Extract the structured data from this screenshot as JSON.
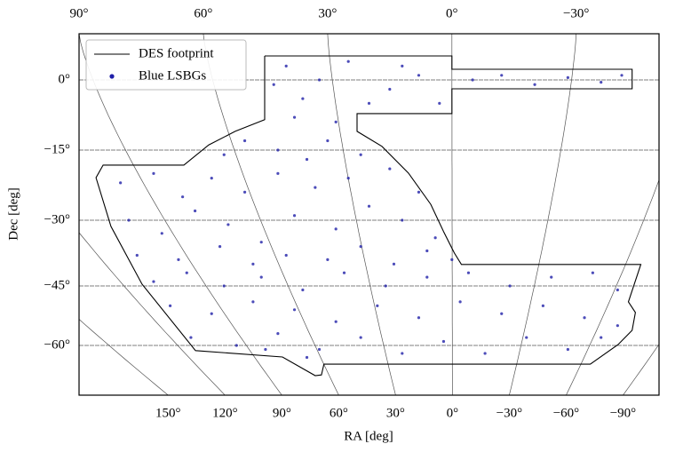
{
  "chart_data": {
    "type": "scatter",
    "xlabel": "RA [deg]",
    "ylabel": "Dec [deg]",
    "xlim": [
      90,
      -50
    ],
    "xticks": [
      {
        "value": 90,
        "label": "90°"
      },
      {
        "value": 60,
        "label": "60°"
      },
      {
        "value": 30,
        "label": "30°"
      },
      {
        "value": 0,
        "label": "0°"
      },
      {
        "value": -30,
        "label": "−30°"
      }
    ],
    "x2lim": [
      197,
      -109
    ],
    "x2ticks": [
      {
        "value": 150,
        "label": "150°"
      },
      {
        "value": 120,
        "label": "120°"
      },
      {
        "value": 90,
        "label": "90°"
      },
      {
        "value": 60,
        "label": "60°"
      },
      {
        "value": 30,
        "label": "30°"
      },
      {
        "value": 0,
        "label": "0°"
      },
      {
        "value": -30,
        "label": "−30°"
      },
      {
        "value": -60,
        "label": "−60°"
      },
      {
        "value": -90,
        "label": "−90°"
      }
    ],
    "ylim": [
      10,
      -72.5
    ],
    "yticks": [
      {
        "value": 0,
        "label": "0°"
      },
      {
        "value": -15,
        "label": "−15°"
      },
      {
        "value": -30,
        "label": "−30°"
      },
      {
        "value": -45,
        "label": "−45°"
      },
      {
        "value": -60,
        "label": "−60°"
      }
    ],
    "grid": true,
    "legend": "upper left",
    "series": [
      {
        "name": "DES footprint",
        "color": "#000000",
        "mode": "line",
        "x": [
          45.2,
          0,
          0,
          -43.5,
          -43.5,
          0,
          0,
          22.9,
          22.9,
          16.9,
          10.5,
          5.1,
          1.9,
          -0.6,
          -2.3,
          -45.6,
          -42.6,
          -44.3,
          -43.5,
          -40.1,
          -33.4,
          30.9,
          31.5,
          33.0,
          40.9,
          61.9,
          74.8,
          82.3,
          85.9,
          84.2,
          64.7,
          58.7,
          52.3,
          45.2,
          45.2
        ],
        "y": [
          5.2,
          5.2,
          2.3,
          2.3,
          -1.9,
          -1.9,
          -7.2,
          -7.2,
          -11.0,
          -14.2,
          -19.9,
          -26.6,
          -32.8,
          -37.5,
          -40.1,
          -40.1,
          -49.0,
          -51.7,
          -56.2,
          -59.8,
          -64.7,
          -64.7,
          -67.4,
          -67.6,
          -62.9,
          -61.3,
          -44.6,
          -31.4,
          -20.9,
          -18.2,
          -18.2,
          -13.9,
          -11.0,
          -8.5,
          5.2
        ]
      },
      {
        "name": "Blue LSBGs",
        "color": "#1f1fa8",
        "mode": "markers",
        "x": [
          40,
          32,
          25,
          15,
          8,
          3,
          20,
          36,
          43,
          28,
          38,
          12,
          -5,
          -12,
          -20,
          -28,
          -36,
          -41,
          50,
          42,
          30,
          22,
          35,
          55,
          80,
          72,
          65,
          58,
          50,
          42,
          33,
          25,
          15,
          8,
          78,
          70,
          62,
          54,
          46,
          38,
          28,
          20,
          12,
          4,
          76,
          66,
          56,
          48,
          40,
          30,
          22,
          14,
          6,
          0,
          72,
          64,
          55,
          46,
          36,
          26,
          16,
          6,
          -4,
          -14,
          -24,
          -34,
          -40,
          68,
          58,
          48,
          38,
          28,
          18,
          8,
          -2,
          -12,
          -22,
          -32,
          -40,
          63,
          52,
          42,
          32,
          22,
          12,
          2,
          -8,
          -18,
          -28,
          -36,
          45,
          35
        ],
        "y": [
          3,
          0,
          4,
          -2,
          1,
          -5,
          -5,
          -4,
          -1,
          -9,
          -8,
          3,
          0,
          1,
          -1,
          0.5,
          -0.5,
          1,
          -13,
          -15,
          -13,
          -16,
          -17,
          -16,
          -22,
          -20,
          -25,
          -21,
          -24,
          -20,
          -23,
          -21,
          -19,
          -24,
          -30,
          -33,
          -28,
          -31,
          -35,
          -29,
          -32,
          -27,
          -30,
          -34,
          -38,
          -39,
          -36,
          -40,
          -38,
          -39,
          -36,
          -40,
          -37,
          -39,
          -44,
          -42,
          -45,
          -43,
          -46,
          -42,
          -45,
          -43,
          -42,
          -45,
          -43,
          -42,
          -46,
          -50,
          -52,
          -49,
          -51,
          -54,
          -50,
          -53,
          -49,
          -52,
          -50,
          -53,
          -55,
          -58,
          -60,
          -57,
          -61,
          -58,
          -62,
          -59,
          -62,
          -58,
          -61,
          -58,
          -61,
          -63
        ]
      }
    ]
  }
}
